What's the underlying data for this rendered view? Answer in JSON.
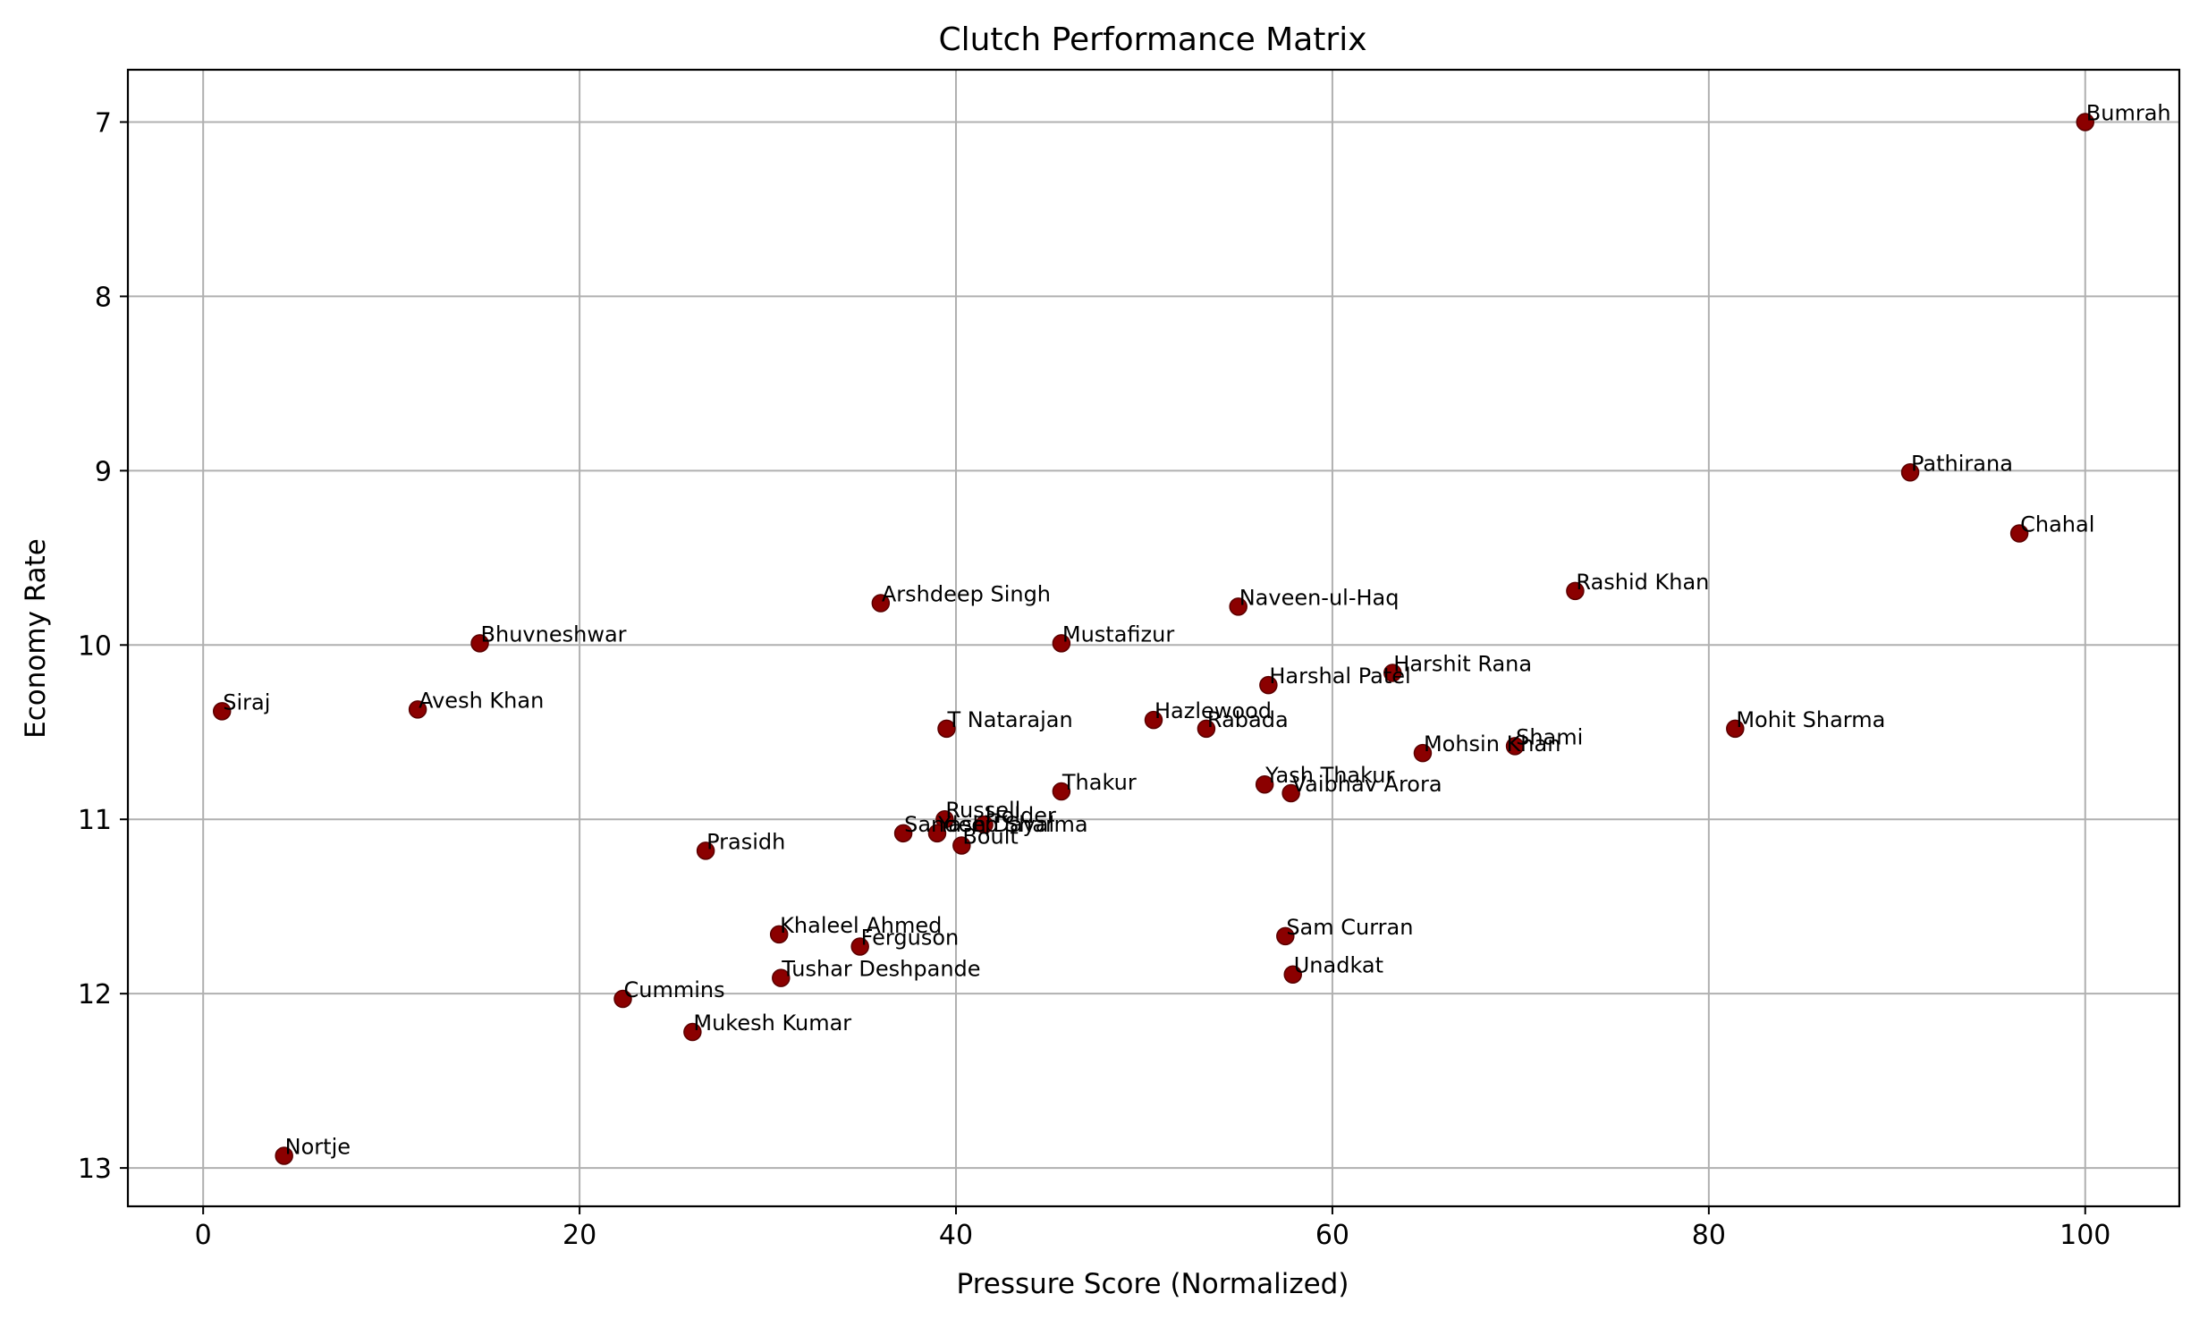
{
  "chart_data": {
    "type": "scatter",
    "title": "Clutch Performance Matrix",
    "xlabel": "Pressure Score (Normalized)",
    "ylabel": "Economy Rate",
    "xlim": [
      -4,
      105
    ],
    "ylim": [
      13.22,
      6.7
    ],
    "y_inverted": true,
    "xticks": [
      0,
      20,
      40,
      60,
      80,
      100
    ],
    "yticks": [
      7,
      8,
      9,
      10,
      11,
      12,
      13
    ],
    "grid": true,
    "point_color": "#8b0000",
    "points": [
      {
        "label": "Bumrah",
        "x": 100.0,
        "y": 7.0
      },
      {
        "label": "Pathirana",
        "x": 90.7,
        "y": 9.01
      },
      {
        "label": "Chahal",
        "x": 96.5,
        "y": 9.36
      },
      {
        "label": "Rashid Khan",
        "x": 72.9,
        "y": 9.69
      },
      {
        "label": "Mohit Sharma",
        "x": 81.4,
        "y": 10.48
      },
      {
        "label": "Harshit Rana",
        "x": 63.2,
        "y": 10.16
      },
      {
        "label": "Shami",
        "x": 69.7,
        "y": 10.58
      },
      {
        "label": "Mohsin Khan",
        "x": 64.8,
        "y": 10.62
      },
      {
        "label": "Naveen-ul-Haq",
        "x": 55.0,
        "y": 9.78
      },
      {
        "label": "Harshal Patel",
        "x": 56.6,
        "y": 10.23
      },
      {
        "label": "Yash Thakur",
        "x": 56.4,
        "y": 10.8
      },
      {
        "label": "Vaibhav Arora",
        "x": 57.8,
        "y": 10.85
      },
      {
        "label": "Sam Curran",
        "x": 57.5,
        "y": 11.67
      },
      {
        "label": "Unadkat",
        "x": 57.9,
        "y": 11.89
      },
      {
        "label": "Hazlewood",
        "x": 50.5,
        "y": 10.43
      },
      {
        "label": "Rabada",
        "x": 53.3,
        "y": 10.48
      },
      {
        "label": "Mustafizur",
        "x": 45.6,
        "y": 9.99
      },
      {
        "label": "Thakur",
        "x": 45.6,
        "y": 10.84
      },
      {
        "label": "T Natarajan",
        "x": 39.5,
        "y": 10.48
      },
      {
        "label": "Arshdeep Singh",
        "x": 36.0,
        "y": 9.76
      },
      {
        "label": "Russell",
        "x": 39.4,
        "y": 11.0
      },
      {
        "label": "Holder",
        "x": 41.5,
        "y": 11.03
      },
      {
        "label": "Sandeep Sharma",
        "x": 37.2,
        "y": 11.08
      },
      {
        "label": "Yash Dayal",
        "x": 39.0,
        "y": 11.08
      },
      {
        "label": "Boult",
        "x": 40.3,
        "y": 11.15
      },
      {
        "label": "Prasidh",
        "x": 26.7,
        "y": 11.18
      },
      {
        "label": "Khaleel Ahmed",
        "x": 30.6,
        "y": 11.66
      },
      {
        "label": "Ferguson",
        "x": 34.9,
        "y": 11.73
      },
      {
        "label": "Tushar Deshpande",
        "x": 30.7,
        "y": 11.91
      },
      {
        "label": "Cummins",
        "x": 22.3,
        "y": 12.03
      },
      {
        "label": "Mukesh Kumar",
        "x": 26.0,
        "y": 12.22
      },
      {
        "label": "Bhuvneshwar",
        "x": 14.7,
        "y": 9.99
      },
      {
        "label": "Avesh Khan",
        "x": 11.4,
        "y": 10.37
      },
      {
        "label": "Siraj",
        "x": 1.0,
        "y": 10.38
      },
      {
        "label": "Nortje",
        "x": 4.3,
        "y": 12.93
      }
    ]
  }
}
